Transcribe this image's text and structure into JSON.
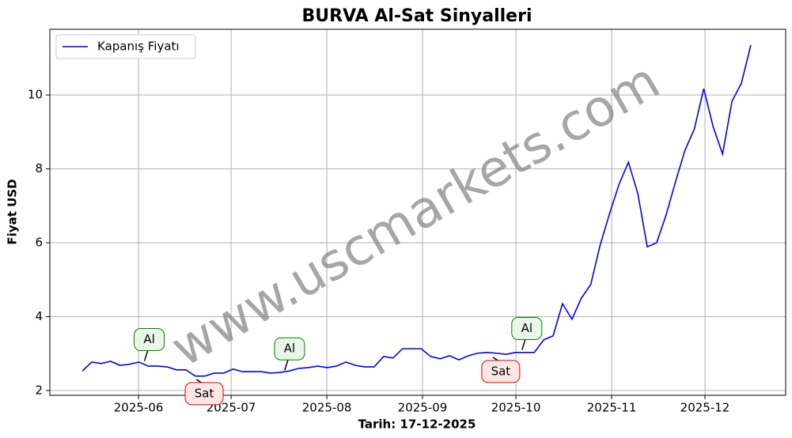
{
  "chart_data": {
    "type": "line",
    "title": "BURVA Al-Sat Sinyalleri",
    "x_label": "Tarih: 17-12-2025",
    "y_label": "Fiyat USD",
    "watermark": "www.uscmarkets.com",
    "series": [
      {
        "name": "Kapanış Fiyatı",
        "color": "#0000ee",
        "values": [
          2.53,
          2.77,
          2.73,
          2.79,
          2.68,
          2.71,
          2.77,
          2.66,
          2.66,
          2.64,
          2.56,
          2.56,
          2.39,
          2.39,
          2.47,
          2.47,
          2.58,
          2.51,
          2.51,
          2.51,
          2.47,
          2.49,
          2.53,
          2.6,
          2.62,
          2.66,
          2.62,
          2.66,
          2.77,
          2.68,
          2.64,
          2.64,
          2.92,
          2.88,
          3.13,
          3.13,
          3.13,
          2.92,
          2.86,
          2.94,
          2.83,
          2.94,
          3.01,
          3.03,
          3.01,
          2.98,
          3.03,
          3.03,
          3.03,
          3.37,
          3.48,
          4.35,
          3.93,
          4.5,
          4.87,
          5.94,
          6.79,
          7.58,
          8.18,
          7.33,
          5.89,
          6.0,
          6.75,
          7.65,
          8.5,
          9.08,
          10.17,
          9.14,
          8.4,
          9.83,
          10.32,
          11.35
        ]
      }
    ],
    "xlim": [
      -3.45,
      74.7
    ],
    "xticks": [
      {
        "value": 5.97,
        "label": "2025-06"
      },
      {
        "value": 15.8,
        "label": "2025-07"
      },
      {
        "value": 25.97,
        "label": "2025-08"
      },
      {
        "value": 36.13,
        "label": "2025-09"
      },
      {
        "value": 46.05,
        "label": "2025-10"
      },
      {
        "value": 56.22,
        "label": "2025-11"
      },
      {
        "value": 66.13,
        "label": "2025-12"
      }
    ],
    "ylim": [
      1.87,
      11.78
    ],
    "yticks": [
      2,
      4,
      6,
      8,
      10
    ],
    "grid": true,
    "legend": "upper left",
    "annotations": [
      {
        "text": "Al",
        "x": 6.6,
        "y": 2.8,
        "color": "green"
      },
      {
        "text": "Sat",
        "x": 12.1,
        "y": 2.3,
        "color": "red"
      },
      {
        "text": "Al",
        "x": 21.5,
        "y": 2.55,
        "color": "green"
      },
      {
        "text": "Sat",
        "x": 43.6,
        "y": 2.9,
        "color": "red"
      },
      {
        "text": "Al",
        "x": 46.7,
        "y": 3.1,
        "color": "green"
      }
    ]
  }
}
